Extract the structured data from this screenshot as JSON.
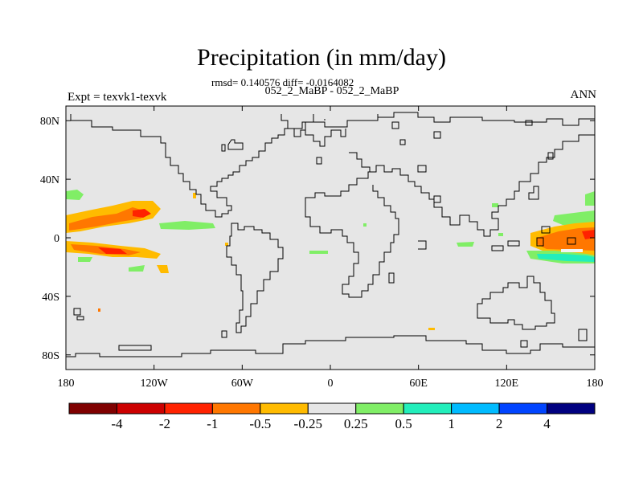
{
  "title": "Precipitation (in mm/day)",
  "stats_line": "rmsd= 0.140576 diff= -0.0164082",
  "experiment_pair": "052_2_MaBP - 052_2_MaBP",
  "experiment_label": "Expt = texvk1-texvk",
  "season": "ANN",
  "map": {
    "background_color": "#e6e6e6",
    "longitude_ticks": [
      {
        "lon": -180,
        "label": "180"
      },
      {
        "lon": -120,
        "label": "120W"
      },
      {
        "lon": -60,
        "label": "60W"
      },
      {
        "lon": 0,
        "label": "0"
      },
      {
        "lon": 60,
        "label": "60E"
      },
      {
        "lon": 120,
        "label": "120E"
      },
      {
        "lon": 180,
        "label": "180"
      }
    ],
    "latitude_ticks": [
      {
        "lat": 80,
        "label": "80N"
      },
      {
        "lat": 40,
        "label": "40N"
      },
      {
        "lat": 0,
        "label": "0"
      },
      {
        "lat": -40,
        "label": "40S"
      },
      {
        "lat": -80,
        "label": "80S"
      }
    ]
  },
  "colorbar": {
    "colors": [
      "#7f0000",
      "#cc0000",
      "#ff2200",
      "#ff7700",
      "#ffbb00",
      "#e6e6e6",
      "#80ee66",
      "#22eebb",
      "#00bbff",
      "#0044ff",
      "#000080"
    ],
    "labels": [
      "-4",
      "-2",
      "-1",
      "-0.5",
      "-0.25",
      "0.25",
      "0.5",
      "1",
      "2",
      "4"
    ]
  }
}
